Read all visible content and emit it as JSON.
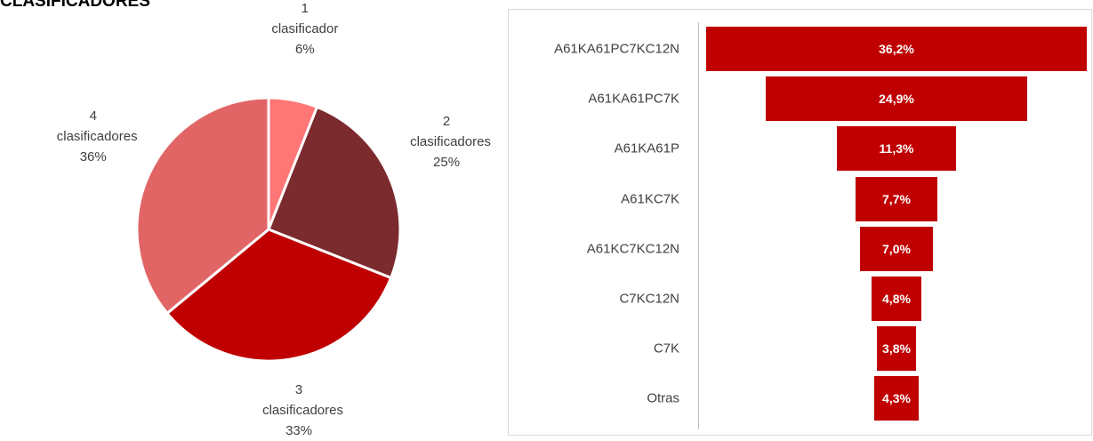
{
  "title": "CLASIFICADORES",
  "chart_data": [
    {
      "type": "pie",
      "categories": [
        "1 clasificador",
        "2 clasificadores",
        "3 clasificadores",
        "4 clasificadores"
      ],
      "values": [
        6,
        25,
        33,
        36
      ],
      "value_labels": [
        "6%",
        "25%",
        "33%",
        "36%"
      ],
      "colors": [
        "#ff7676",
        "#7b2a2e",
        "#c00000",
        "#e26565"
      ]
    },
    {
      "type": "funnel",
      "categories": [
        "A61KA61PC7KC12N",
        "A61KA61PC7K",
        "A61KA61P",
        "A61KC7K",
        "A61KC7KC12N",
        "C7KC12N",
        "C7K",
        "Otras"
      ],
      "values": [
        36.2,
        24.9,
        11.3,
        7.7,
        7.0,
        4.8,
        3.8,
        4.3
      ],
      "value_labels": [
        "36,2%",
        "24,9%",
        "11,3%",
        "7,7%",
        "7,0%",
        "4,8%",
        "3,8%",
        "4,3%"
      ],
      "color": "#c00000"
    }
  ]
}
